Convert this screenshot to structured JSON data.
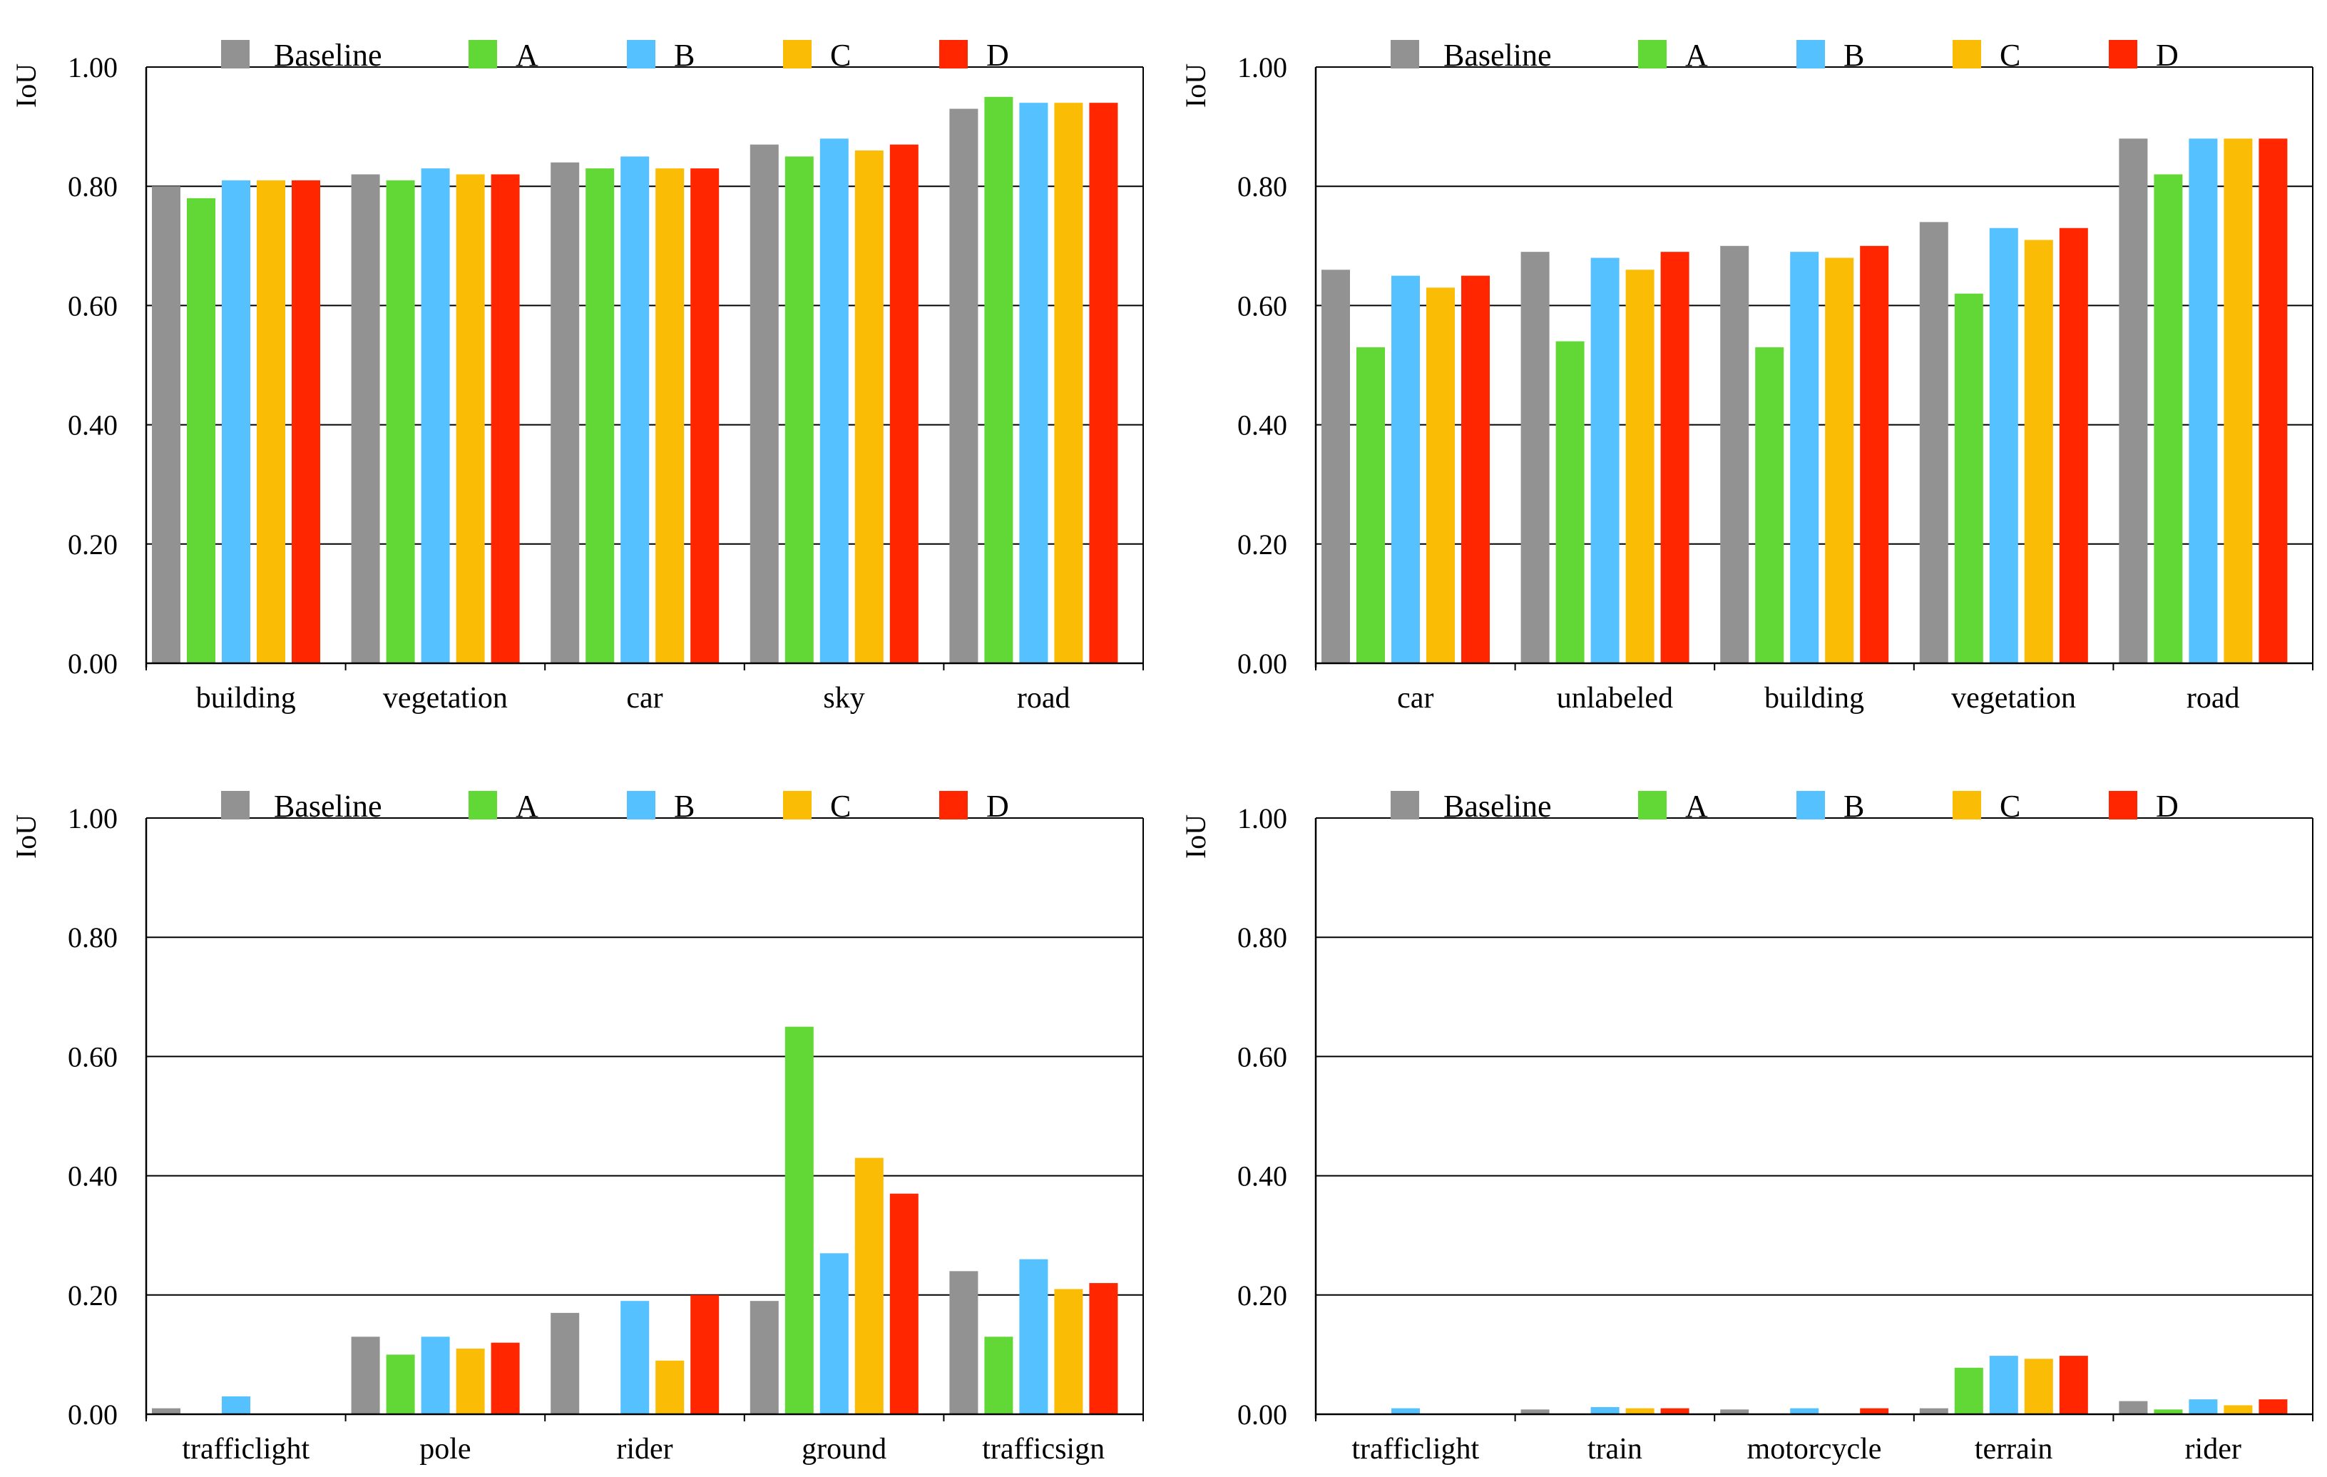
{
  "legend": [
    {
      "name": "Baseline",
      "color": "#929292"
    },
    {
      "name": "A",
      "color": "#62d836"
    },
    {
      "name": "B",
      "color": "#56c1ff"
    },
    {
      "name": "C",
      "color": "#fbbc05"
    },
    {
      "name": "D",
      "color": "#ff2600"
    }
  ],
  "chart_data": [
    {
      "type": "bar",
      "ylabel": "IoU",
      "ylim": [
        0,
        1
      ],
      "yticks": [
        "0.00",
        "0.20",
        "0.40",
        "0.60",
        "0.80",
        "1.00"
      ],
      "grid": true,
      "legend_position": "top",
      "categories": [
        "building",
        "vegetation",
        "car",
        "sky",
        "road"
      ],
      "series": [
        {
          "name": "Baseline",
          "values": [
            0.8,
            0.82,
            0.84,
            0.87,
            0.93
          ]
        },
        {
          "name": "A",
          "values": [
            0.78,
            0.81,
            0.83,
            0.85,
            0.95
          ]
        },
        {
          "name": "B",
          "values": [
            0.81,
            0.83,
            0.85,
            0.88,
            0.94
          ]
        },
        {
          "name": "C",
          "values": [
            0.81,
            0.82,
            0.83,
            0.86,
            0.94
          ]
        },
        {
          "name": "D",
          "values": [
            0.81,
            0.82,
            0.83,
            0.87,
            0.94
          ]
        }
      ]
    },
    {
      "type": "bar",
      "ylabel": "IoU",
      "ylim": [
        0,
        1
      ],
      "yticks": [
        "0.00",
        "0.20",
        "0.40",
        "0.60",
        "0.80",
        "1.00"
      ],
      "grid": true,
      "legend_position": "top",
      "categories": [
        "car",
        "unlabeled",
        "building",
        "vegetation",
        "road"
      ],
      "series": [
        {
          "name": "Baseline",
          "values": [
            0.66,
            0.69,
            0.7,
            0.74,
            0.88
          ]
        },
        {
          "name": "A",
          "values": [
            0.53,
            0.54,
            0.53,
            0.62,
            0.82
          ]
        },
        {
          "name": "B",
          "values": [
            0.65,
            0.68,
            0.69,
            0.73,
            0.88
          ]
        },
        {
          "name": "C",
          "values": [
            0.63,
            0.66,
            0.68,
            0.71,
            0.88
          ]
        },
        {
          "name": "D",
          "values": [
            0.65,
            0.69,
            0.7,
            0.73,
            0.88
          ]
        }
      ]
    },
    {
      "type": "bar",
      "ylabel": "IoU",
      "ylim": [
        0,
        1
      ],
      "yticks": [
        "0.00",
        "0.20",
        "0.40",
        "0.60",
        "0.80",
        "1.00"
      ],
      "grid": true,
      "legend_position": "top",
      "categories": [
        "trafficlight",
        "pole",
        "rider",
        "ground",
        "trafficsign"
      ],
      "series": [
        {
          "name": "Baseline",
          "values": [
            0.01,
            0.13,
            0.17,
            0.19,
            0.24
          ]
        },
        {
          "name": "A",
          "values": [
            0.0,
            0.1,
            0.0,
            0.65,
            0.13
          ]
        },
        {
          "name": "B",
          "values": [
            0.03,
            0.13,
            0.19,
            0.27,
            0.26
          ]
        },
        {
          "name": "C",
          "values": [
            0.0,
            0.11,
            0.09,
            0.43,
            0.21
          ]
        },
        {
          "name": "D",
          "values": [
            0.0,
            0.12,
            0.2,
            0.37,
            0.22
          ]
        }
      ]
    },
    {
      "type": "bar",
      "ylabel": "IoU",
      "ylim": [
        0,
        1
      ],
      "yticks": [
        "0.00",
        "0.20",
        "0.40",
        "0.60",
        "0.80",
        "1.00"
      ],
      "grid": true,
      "legend_position": "top",
      "categories": [
        "trafficlight",
        "train",
        "motorcycle",
        "terrain",
        "rider"
      ],
      "series": [
        {
          "name": "Baseline",
          "values": [
            0.0,
            0.008,
            0.008,
            0.01,
            0.022
          ]
        },
        {
          "name": "A",
          "values": [
            0.0,
            0.0,
            0.0,
            0.078,
            0.008
          ]
        },
        {
          "name": "B",
          "values": [
            0.01,
            0.012,
            0.01,
            0.098,
            0.025
          ]
        },
        {
          "name": "C",
          "values": [
            0.0,
            0.01,
            0.0,
            0.093,
            0.015
          ]
        },
        {
          "name": "D",
          "values": [
            0.0,
            0.01,
            0.01,
            0.098,
            0.025
          ]
        }
      ]
    }
  ]
}
